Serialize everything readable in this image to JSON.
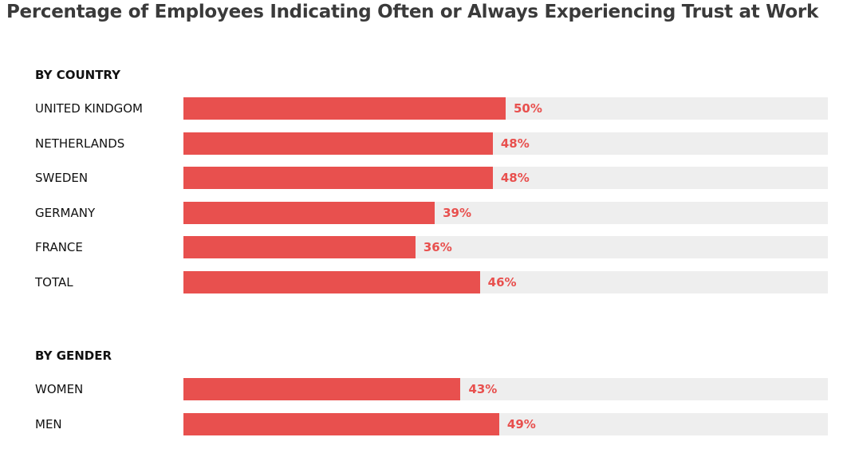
{
  "chart_data": {
    "type": "bar",
    "orientation": "horizontal",
    "title": "Percentage of Employees Indicating Often or Always Experiencing Trust at Work",
    "xlim": [
      0,
      100
    ],
    "grid": false,
    "colors": {
      "bar": "#e8504e",
      "track": "#eeeeee",
      "value_label": "#e8504e"
    },
    "groups": [
      {
        "heading": "BY COUNTRY",
        "categories": [
          "UNITED KINDGOM",
          "NETHERLANDS",
          "SWEDEN",
          "GERMANY",
          "FRANCE",
          "TOTAL"
        ],
        "values": [
          50,
          48,
          48,
          39,
          36,
          46
        ],
        "labels": [
          "50%",
          "48%",
          "48%",
          "39%",
          "36%",
          "46%"
        ]
      },
      {
        "heading": "BY GENDER",
        "categories": [
          "WOMEN",
          "MEN"
        ],
        "values": [
          43,
          49
        ],
        "labels": [
          "43%",
          "49%"
        ]
      }
    ]
  }
}
